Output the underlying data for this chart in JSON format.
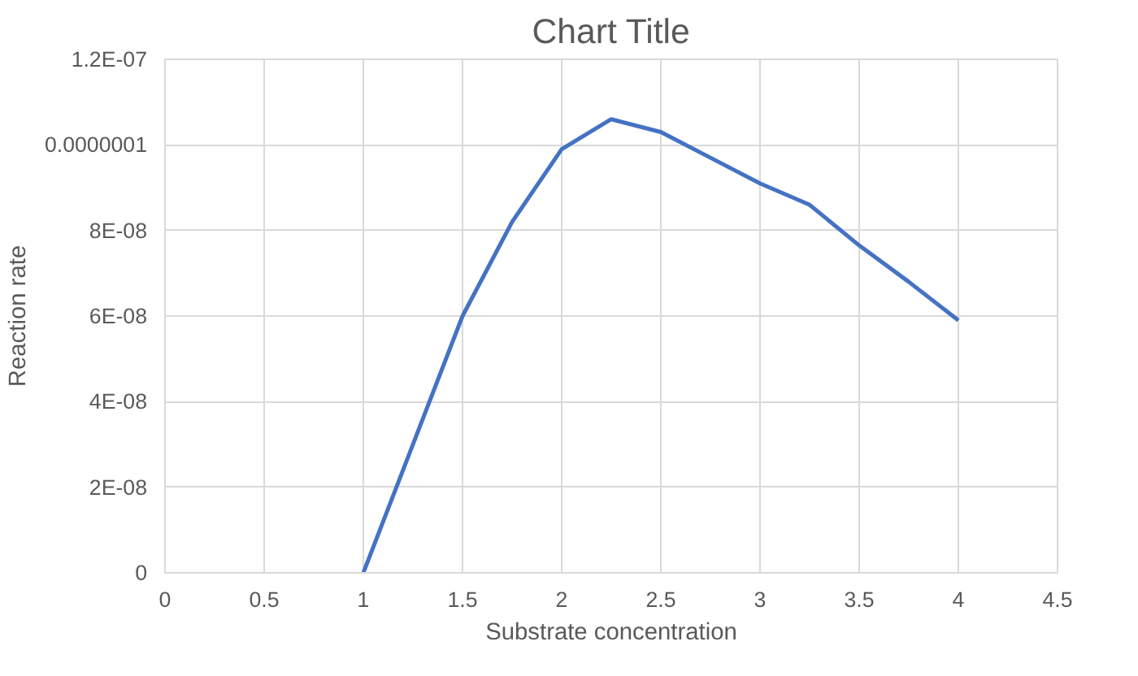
{
  "chart_data": {
    "type": "line",
    "title": "Chart Title",
    "xlabel": "Substrate concentration",
    "ylabel": "Reaction rate",
    "x": [
      1,
      1.5,
      1.75,
      2,
      2.25,
      2.5,
      2.75,
      3,
      3.25,
      3.5,
      3.75,
      4
    ],
    "series": [
      {
        "color": "#4472c4",
        "values": [
          0,
          6e-08,
          8.2e-08,
          9.9e-08,
          1.06e-07,
          1.03e-07,
          9.7e-08,
          9.1e-08,
          8.6e-08,
          7.65e-08,
          6.8e-08,
          5.9e-08
        ]
      }
    ],
    "xlim": [
      0,
      4.5
    ],
    "xticks": [
      0,
      0.5,
      1,
      1.5,
      2,
      2.5,
      3,
      3.5,
      4,
      4.5
    ],
    "ylim": [
      0,
      1.2e-07
    ],
    "yticks": [
      0,
      {
        "value": 2e-08,
        "label": "2E-08"
      },
      {
        "value": 4e-08,
        "label": "4E-08"
      },
      {
        "value": 6e-08,
        "label": "6E-08"
      },
      {
        "value": 8e-08,
        "label": "8E-08"
      },
      {
        "value": 1e-07,
        "label": "0.0000001"
      },
      {
        "value": 1.2e-07,
        "label": "1.2E-07"
      }
    ],
    "grid": true,
    "marker": "none",
    "line_style": "solid"
  }
}
